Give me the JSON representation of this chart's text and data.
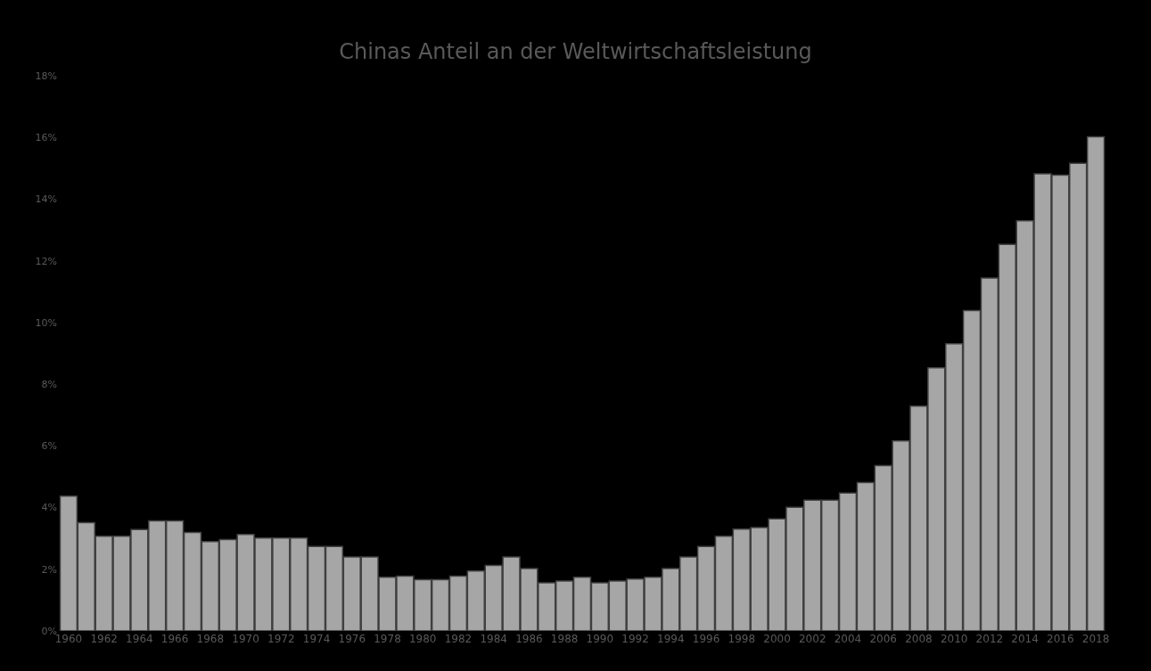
{
  "chart_data": {
    "type": "bar",
    "title": "Chinas Anteil an der Weltwirtschaftsleistung",
    "categories": [
      "1960",
      null,
      "1962",
      null,
      "1964",
      null,
      "1966",
      null,
      "1968",
      null,
      "1970",
      null,
      "1972",
      null,
      "1974",
      null,
      "1976",
      null,
      "1978",
      null,
      "1980",
      null,
      "1982",
      null,
      "1984",
      null,
      "1986",
      null,
      "1988",
      null,
      "1990",
      null,
      "1992",
      null,
      "1994",
      null,
      "1996",
      null,
      "1998",
      null,
      "2000",
      null,
      "2002",
      null,
      "2004",
      null,
      "2006",
      null,
      "2008",
      null,
      "2010",
      null,
      "2012",
      null,
      "2014",
      null,
      "2016",
      null,
      "2018"
    ],
    "values": [
      4.37,
      3.51,
      3.07,
      3.07,
      3.29,
      3.57,
      3.57,
      3.19,
      2.9,
      2.96,
      3.13,
      3.01,
      3.01,
      3.01,
      2.74,
      2.74,
      2.4,
      2.4,
      1.74,
      1.78,
      1.66,
      1.66,
      1.78,
      1.94,
      2.12,
      2.4,
      2.02,
      1.56,
      1.62,
      1.74,
      1.56,
      1.62,
      1.68,
      1.74,
      2.02,
      2.4,
      2.74,
      3.07,
      3.3,
      3.35,
      3.63,
      4.01,
      4.24,
      4.24,
      4.47,
      4.81,
      5.36,
      6.16,
      7.29,
      8.53,
      9.31,
      10.39,
      11.44,
      12.53,
      13.3,
      14.82,
      14.78,
      15.16,
      16.02
    ],
    "color": "#a6a6a6",
    "ylim": [
      0,
      18
    ],
    "yticks": [
      {
        "value": 0,
        "label": "0%"
      },
      {
        "value": 2,
        "label": "2%"
      },
      {
        "value": 4,
        "label": "4%"
      },
      {
        "value": 6,
        "label": "6%"
      },
      {
        "value": 8,
        "label": "8%"
      },
      {
        "value": 10,
        "label": "10%"
      },
      {
        "value": 12,
        "label": "12%"
      },
      {
        "value": 14,
        "label": "14%"
      },
      {
        "value": 16,
        "label": "16%"
      },
      {
        "value": 18,
        "label": "18%"
      }
    ],
    "grid": false,
    "legend": false
  }
}
